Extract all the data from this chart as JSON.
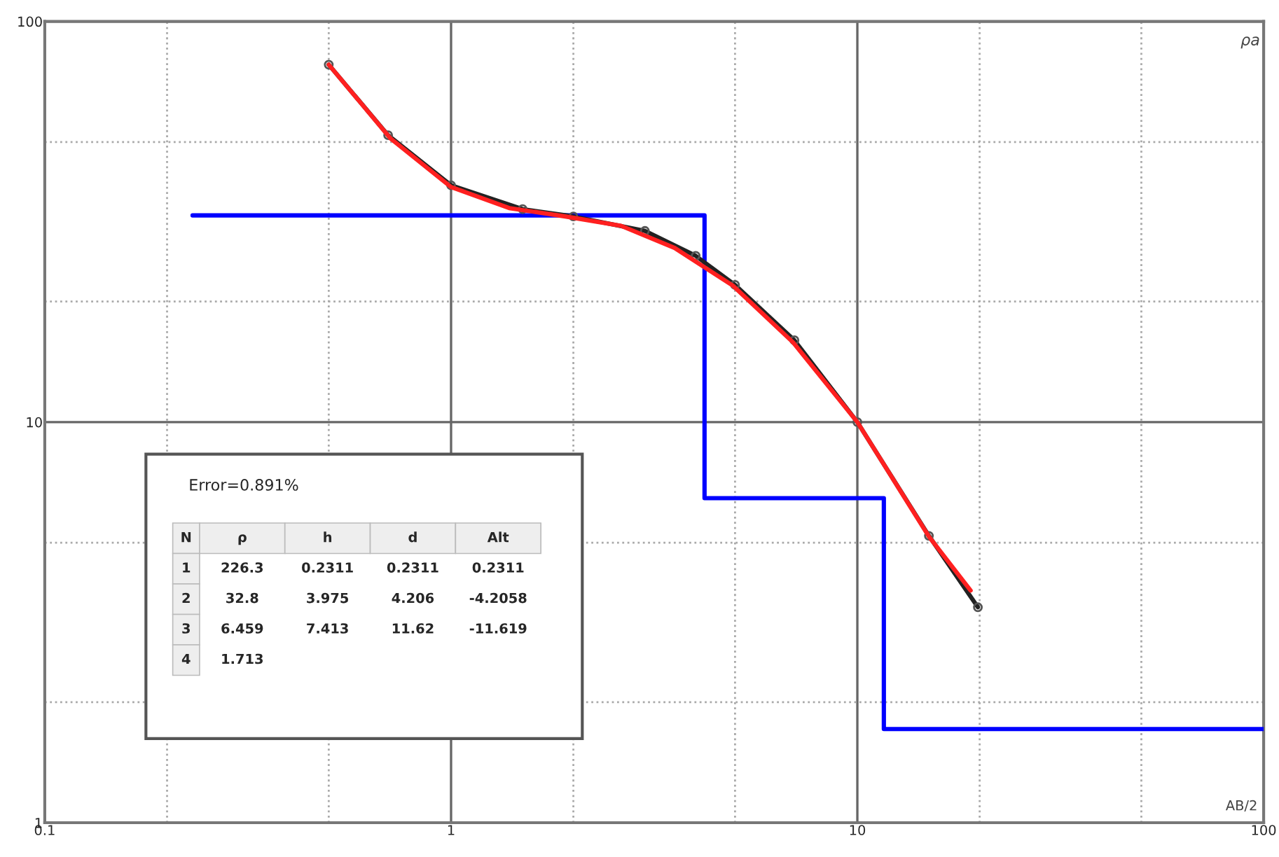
{
  "chart_data": {
    "type": "line",
    "xlabel": "AB/2",
    "ylabel": "ρa",
    "log": "xy",
    "xlim": [
      0.1,
      100
    ],
    "ylim": [
      1,
      100
    ],
    "xticks": [
      0.1,
      1,
      10,
      100
    ],
    "yticks": [
      1,
      10,
      100
    ],
    "grid": true,
    "series": [
      {
        "type": "step",
        "color": "#0000ff",
        "x": [
          0.2311,
          4.206,
          11.62,
          100
        ],
        "values": [
          32.8,
          6.459,
          1.713,
          1.713
        ]
      },
      {
        "color": "#222222",
        "marker": "circle",
        "x": [
          0.5,
          0.7,
          1,
          1.5,
          2,
          3,
          4,
          5,
          7,
          10,
          15,
          19.8
        ],
        "values": [
          78,
          52,
          39,
          34,
          32.6,
          30,
          26,
          22,
          16,
          10,
          5.2,
          3.45
        ]
      },
      {
        "color": "#ff2020",
        "x": [
          0.5,
          0.71,
          1,
          1.39,
          1.91,
          2.62,
          3.55,
          4.94,
          6.95,
          10,
          15,
          19
        ],
        "values": [
          78,
          51,
          38.6,
          34.2,
          32.6,
          30.9,
          27.2,
          21.9,
          15.8,
          10,
          5.18,
          3.8
        ]
      }
    ],
    "annotations": [
      "Error=0.891%",
      "N",
      "ρ",
      "h",
      "d",
      "Alt",
      "1",
      "226.3",
      "0.2311",
      "0.2311",
      "0.2311",
      "2",
      "32.8",
      "3.975",
      "4.206",
      "-4.2058",
      "3",
      "6.459",
      "7.413",
      "11.62",
      "-11.619",
      "4",
      "1.713"
    ]
  }
}
